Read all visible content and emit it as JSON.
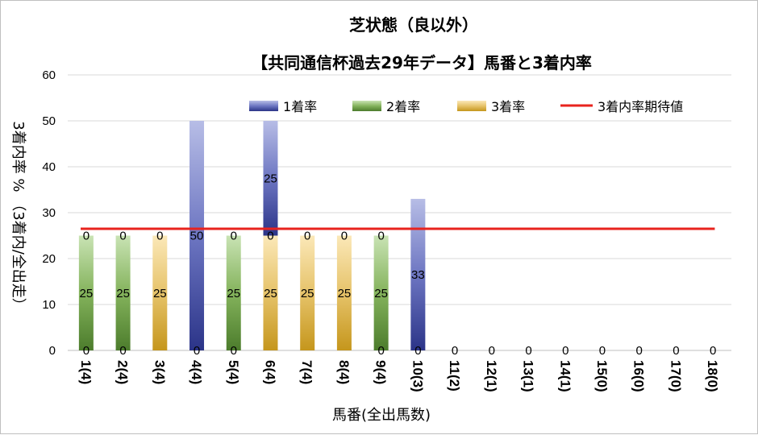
{
  "chart_data": {
    "type": "bar",
    "stacked": true,
    "title": "芝状態（良以外）",
    "subtitle": "【共同通信杯過去29年データ】馬番と3着内率",
    "xlabel": "馬番(全出馬数)",
    "ylabel": "3着内率 %  （3着内/全出走）",
    "ylim": [
      0,
      60
    ],
    "yticks": [
      0,
      10,
      20,
      30,
      40,
      50,
      60
    ],
    "grid": true,
    "legend_position": "top-right",
    "categories": [
      "1(4)",
      "2(4)",
      "3(4)",
      "4(4)",
      "5(4)",
      "6(4)",
      "7(4)",
      "8(4)",
      "9(4)",
      "10(3)",
      "11(2)",
      "12(1)",
      "13(1)",
      "14(1)",
      "15(0)",
      "16(0)",
      "17(0)",
      "18(0)"
    ],
    "series": [
      {
        "name": "1着率",
        "color": "#4a55a8",
        "values": [
          0,
          0,
          0,
          50,
          0,
          25,
          0,
          0,
          0,
          33,
          0,
          0,
          0,
          0,
          0,
          0,
          0,
          0
        ]
      },
      {
        "name": "2着率",
        "color": "#5e8f3a",
        "values": [
          25,
          25,
          0,
          0,
          25,
          0,
          0,
          0,
          25,
          0,
          0,
          0,
          0,
          0,
          0,
          0,
          0,
          0
        ]
      },
      {
        "name": "3着率",
        "color": "#d4a52b",
        "values": [
          0,
          0,
          25,
          0,
          0,
          25,
          25,
          25,
          0,
          0,
          0,
          0,
          0,
          0,
          0,
          0,
          0,
          0
        ]
      }
    ],
    "labels": {
      "bottom": [
        "0",
        "0",
        "",
        "0",
        "0",
        "",
        "",
        "",
        "0",
        "0",
        "0",
        "0",
        "0",
        "0",
        "0",
        "0",
        "0",
        "0"
      ],
      "middle": [
        "25",
        "25",
        "25",
        "",
        "25",
        "25",
        "25",
        "25",
        "25",
        "33",
        "",
        "",
        "",
        "",
        "",
        "",
        "",
        ""
      ],
      "top": [
        "0",
        "0",
        "0",
        "50",
        "0",
        "0",
        "0",
        "0",
        "0",
        "",
        "",
        "",
        "",
        "",
        "",
        "",
        "",
        ""
      ],
      "upper": [
        "",
        "",
        "",
        "",
        "",
        "25",
        "",
        "",
        "",
        "",
        "",
        "",
        "",
        "",
        "",
        "",
        "",
        ""
      ]
    },
    "reference_line": {
      "name": "3着内率期待値",
      "value": 26.5,
      "color": "#e8231e"
    }
  }
}
